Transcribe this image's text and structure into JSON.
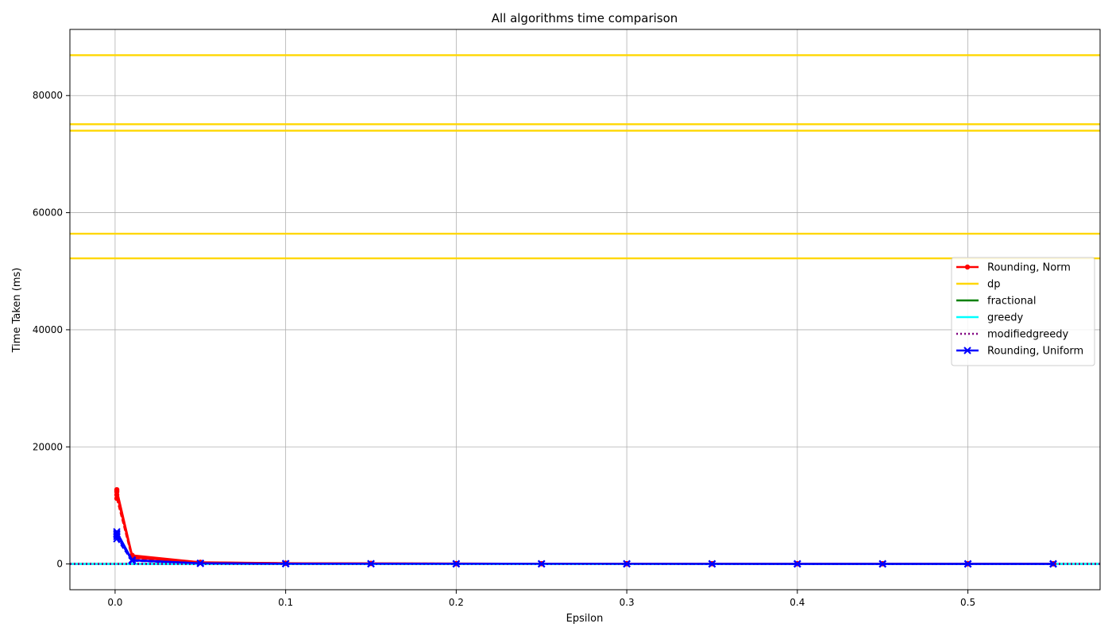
{
  "chart_data": {
    "type": "line",
    "title": "All algorithms time comparison",
    "xlabel": "Epsilon",
    "ylabel": "Time Taken (ms)",
    "xlim": [
      -0.0265,
      0.5775
    ],
    "ylim": [
      -4400,
      91300
    ],
    "xticks": [
      0.0,
      0.1,
      0.2,
      0.3,
      0.4,
      0.5
    ],
    "xtick_labels": [
      "0.0",
      "0.1",
      "0.2",
      "0.3",
      "0.4",
      "0.5"
    ],
    "yticks": [
      0,
      20000,
      40000,
      60000,
      80000
    ],
    "ytick_labels": [
      "0",
      "20000",
      "40000",
      "60000",
      "80000"
    ],
    "grid": true,
    "legend_position": "center-right",
    "x": [
      0.001,
      0.01,
      0.05,
      0.1,
      0.15,
      0.2,
      0.25,
      0.3,
      0.35,
      0.4,
      0.45,
      0.5,
      0.55
    ],
    "series": [
      {
        "name": "Rounding, Norm",
        "color": "#ff0000",
        "style": "solid",
        "marker": "dot",
        "runs": [
          [
            12700,
            1500,
            300,
            150,
            100,
            80,
            60,
            50,
            45,
            40,
            35,
            30,
            30
          ],
          [
            12500,
            1350,
            280,
            140,
            95,
            75,
            60,
            50,
            45,
            40,
            35,
            30,
            30
          ],
          [
            12300,
            1200,
            260,
            130,
            90,
            70,
            55,
            48,
            42,
            38,
            33,
            30,
            28
          ],
          [
            11800,
            1100,
            240,
            120,
            85,
            65,
            55,
            45,
            40,
            36,
            32,
            28,
            26
          ],
          [
            11200,
            1000,
            220,
            110,
            80,
            60,
            50,
            42,
            38,
            34,
            30,
            26,
            24
          ]
        ]
      },
      {
        "name": "dp",
        "color": "#ffd700",
        "style": "solid",
        "marker": "none",
        "constant_runs": [
          86900,
          75100,
          74000,
          56400,
          52200
        ]
      },
      {
        "name": "fractional",
        "color": "#008000",
        "style": "solid",
        "marker": "none",
        "constant_runs": [
          5,
          5,
          5,
          5,
          5
        ]
      },
      {
        "name": "greedy",
        "color": "#00ffff",
        "style": "solid",
        "marker": "none",
        "constant_runs": [
          10,
          10,
          10,
          10,
          10
        ]
      },
      {
        "name": "modifiedgreedy",
        "color": "#800080",
        "style": "dotted",
        "marker": "none",
        "constant_runs": [
          15,
          15,
          15,
          15,
          15
        ]
      },
      {
        "name": "Rounding, Uniform",
        "color": "#0000ff",
        "style": "solid",
        "marker": "x",
        "runs": [
          [
            5500,
            700,
            120,
            60,
            40,
            30,
            25,
            20,
            18,
            16,
            15,
            14,
            13
          ],
          [
            5200,
            650,
            110,
            55,
            38,
            28,
            23,
            19,
            17,
            15,
            14,
            13,
            12
          ],
          [
            5000,
            620,
            100,
            50,
            35,
            26,
            22,
            18,
            16,
            14,
            13,
            12,
            11
          ],
          [
            4700,
            580,
            95,
            48,
            32,
            25,
            20,
            17,
            15,
            13,
            12,
            11,
            10
          ],
          [
            4300,
            540,
            90,
            45,
            30,
            24,
            19,
            16,
            14,
            12,
            11,
            10,
            10
          ]
        ]
      }
    ]
  }
}
